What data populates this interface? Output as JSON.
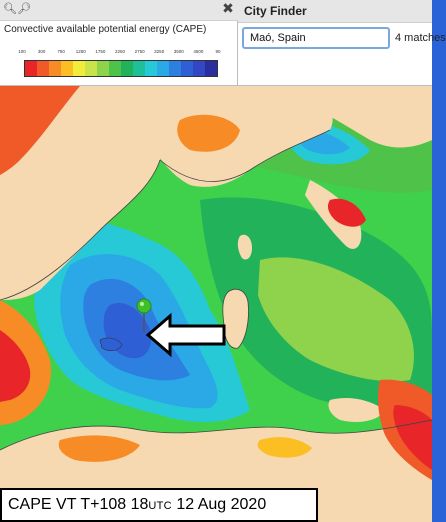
{
  "legend": {
    "title": "Convective available potential energy (CAPE)",
    "ticks": [
      "100",
      "300",
      "750",
      "1250",
      "1750",
      "2250",
      "2750",
      "3250",
      "3500",
      "4500",
      "90"
    ],
    "colors": [
      "#e8262a",
      "#f05a28",
      "#f78c26",
      "#fbbf23",
      "#f2ec3a",
      "#c9e34b",
      "#8fd34d",
      "#4fc24a",
      "#22b35a",
      "#1fbf99",
      "#27c9d6",
      "#2aa9e6",
      "#2e80e0",
      "#2e5fd4",
      "#3347c4",
      "#2b2f9e"
    ]
  },
  "finder": {
    "title": "City Finder",
    "query": "Maó, Spain",
    "matches": "4 matches"
  },
  "caption": {
    "prefix": "CAPE VT T+108 18",
    "utc": "UTC",
    "suffix": " 12 Aug 2020"
  },
  "map": {
    "marker_icon": "location-pin-icon",
    "arrow_icon": "left-arrow-icon"
  }
}
